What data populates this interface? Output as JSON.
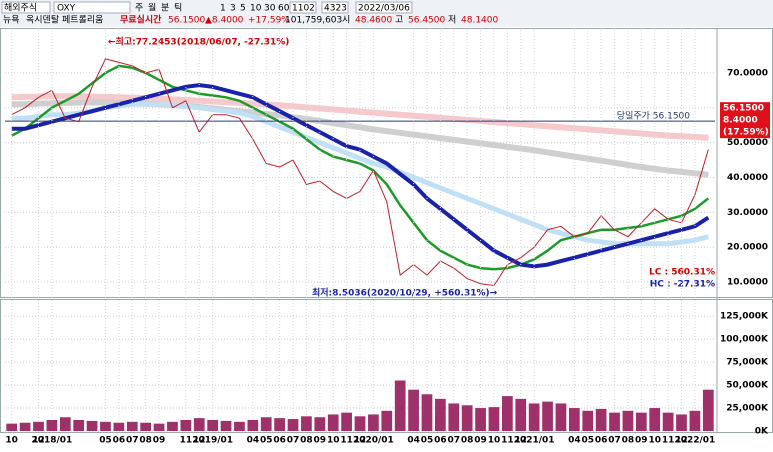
{
  "toolbar": {
    "market": "해외주식",
    "symbol": "OXY",
    "exchange": "뉴욕",
    "name": "옥시덴탈 페트롤리움",
    "realtime": "무료실시간",
    "units": [
      "주",
      "월",
      "분",
      "틱"
    ],
    "periods": [
      "1",
      "3",
      "5",
      "10",
      "30",
      "60"
    ],
    "count1": "1102",
    "count2": "4323",
    "date": "2022/03/06",
    "price": "56.1500",
    "change": "▲8.4000",
    "change_pct": "+17.59%",
    "volume": "101,759,603",
    "open_label": "시",
    "open": "48.4600",
    "high_label": "고",
    "high": "56.4500",
    "low_label": "저",
    "low": "48.1400"
  },
  "chart_data": [
    {
      "type": "line",
      "ylim": [
        6,
        82.3
      ],
      "yticks": [
        {
          "value": 70,
          "label": "70.0000"
        },
        {
          "value": 60,
          "label": "60.0000"
        },
        {
          "value": 50,
          "label": "50.0000"
        },
        {
          "value": 40,
          "label": "40.0000"
        },
        {
          "value": 30,
          "label": "30.0000"
        },
        {
          "value": 20,
          "label": "20.0000"
        },
        {
          "value": 10,
          "label": "10.0000"
        }
      ],
      "series": [
        {
          "color": "#f6c9cc",
          "width": 6,
          "values": [
            63,
            63.1,
            63.2,
            63.3,
            63.3,
            63.3,
            63.2,
            63.1,
            63,
            62.9,
            62.8,
            62.6,
            62.4,
            62.2,
            62,
            61.8,
            61.6,
            61.4,
            61.2,
            61,
            60.7,
            60.4,
            60.1,
            59.8,
            59.5,
            59.2,
            58.9,
            58.6,
            58.3,
            58,
            57.7,
            57.4,
            57.1,
            56.8,
            56.5,
            56.2,
            55.9,
            55.6,
            55.3,
            55,
            54.7,
            54.4,
            54.1,
            53.8,
            53.5,
            53.2,
            52.9,
            52.6,
            52.3,
            52,
            51.8,
            51.6,
            51.4
          ]
        },
        {
          "color": "#cfcfcf",
          "width": 6,
          "values": [
            61,
            61,
            61.2,
            61.3,
            61.4,
            61.5,
            61.5,
            61.5,
            61.4,
            61.3,
            61.2,
            61,
            60.8,
            60.5,
            60.2,
            59.8,
            59.4,
            59,
            58.6,
            58.2,
            57.8,
            57.3,
            56.8,
            56.2,
            55.6,
            55,
            54.4,
            53.8,
            53.3,
            52.8,
            52.3,
            51.8,
            51.3,
            50.8,
            50.3,
            49.8,
            49.3,
            48.8,
            48.3,
            47.8,
            47.2,
            46.6,
            46,
            45.4,
            44.8,
            44.2,
            43.6,
            43,
            42.5,
            42,
            41.6,
            41.2,
            40.8
          ]
        },
        {
          "color": "#bfe0f5",
          "width": 5,
          "values": [
            57,
            57,
            57.5,
            58,
            58,
            58.5,
            59,
            60,
            60.5,
            61,
            61,
            61,
            61,
            60.5,
            60,
            59.5,
            59,
            58.5,
            57.5,
            56,
            54.5,
            53,
            51.5,
            50,
            48.5,
            47,
            45.5,
            44,
            43,
            41.5,
            40,
            38.5,
            37,
            35.5,
            34,
            32.5,
            31,
            29.5,
            28,
            26.5,
            25,
            24,
            23,
            22,
            21.5,
            21,
            21,
            21,
            21,
            21,
            21.5,
            22,
            23
          ]
        },
        {
          "color": "#1f9a2a",
          "width": 2.5,
          "values": [
            52,
            54,
            57,
            60,
            62,
            64,
            67,
            70,
            72,
            71.5,
            70,
            68,
            66,
            65,
            64,
            63.5,
            63,
            62,
            60,
            58,
            56,
            54,
            51,
            48,
            46,
            45,
            44,
            42,
            38,
            32,
            27,
            22,
            19,
            17,
            15,
            14,
            13.7,
            14,
            15,
            16.5,
            19,
            22,
            23,
            24,
            25,
            25,
            25.5,
            26,
            27,
            28,
            29,
            31,
            34
          ]
        },
        {
          "color": "#1a23a8",
          "width": 4,
          "values": [
            54,
            54,
            55,
            56,
            57,
            58,
            59,
            60,
            61,
            62,
            63,
            64,
            65,
            66,
            66.5,
            66,
            65,
            64,
            63,
            61,
            59,
            57,
            55,
            53,
            51,
            49,
            48,
            46,
            44,
            41,
            38,
            34,
            31,
            28,
            25,
            22,
            19,
            17,
            15,
            14.5,
            15,
            16,
            17,
            18,
            19,
            20,
            21,
            22,
            23,
            24,
            25,
            26,
            28.5
          ]
        },
        {
          "color": "#c0202a",
          "width": 1,
          "values": [
            58,
            60,
            63,
            65,
            57,
            56,
            66,
            74,
            73,
            72,
            70,
            71,
            60,
            62,
            53,
            58,
            58,
            57,
            51,
            44,
            43,
            45,
            38,
            39,
            36,
            34,
            36,
            42,
            33,
            12,
            15,
            12,
            16,
            14,
            11,
            9.5,
            9,
            15,
            17,
            20,
            25,
            26,
            23,
            24,
            29,
            25,
            23,
            27,
            31,
            28,
            27,
            35,
            48
          ]
        }
      ],
      "current_price": 56.15,
      "current_price_label": "당일주가 56.1500",
      "price_tag": [
        "56.1500",
        "8.4000",
        "(17.59%)"
      ],
      "high_note": "←최고:77.2453(2018/06/07, -27.31%)",
      "low_note": "최저:8.5036(2020/10/29, +560.31%)→",
      "lc": "LC : 560.31%",
      "hc": "HC : -27.31%"
    },
    {
      "type": "bar",
      "categories": [
        "10",
        null,
        "12",
        "2018/01",
        null,
        null,
        null,
        "05",
        "06",
        "07",
        "08",
        "09",
        null,
        "11",
        "12",
        "2019/01",
        null,
        null,
        "04",
        "05",
        "06",
        "07",
        "08",
        "09",
        "10",
        "11",
        "12",
        "2020/01",
        null,
        null,
        "04",
        "05",
        "06",
        "07",
        "08",
        "09",
        "10",
        "11",
        "12",
        "2021/01",
        null,
        null,
        "04",
        "05",
        "06",
        "07",
        "08",
        "09",
        "10",
        "11",
        "12",
        "2022/01",
        null
      ],
      "color": "#a0306a",
      "ylim": [
        0,
        141600
      ],
      "yticks": [
        {
          "value": 125000,
          "label": "125,000K"
        },
        {
          "value": 100000,
          "label": "100,000K"
        },
        {
          "value": 75000,
          "label": "75,000K"
        },
        {
          "value": 50000,
          "label": "50,000K"
        },
        {
          "value": 25000,
          "label": "25,000K"
        },
        {
          "value": 0,
          "label": "0K"
        }
      ],
      "values": [
        8000,
        9000,
        10000,
        12000,
        15000,
        12000,
        11000,
        10000,
        9000,
        10000,
        9000,
        8000,
        10000,
        12000,
        14000,
        12000,
        11000,
        10000,
        12000,
        15000,
        14000,
        13000,
        16000,
        15000,
        18000,
        20000,
        16000,
        18000,
        22000,
        55000,
        45000,
        40000,
        35000,
        30000,
        28000,
        25000,
        26000,
        38000,
        35000,
        30000,
        32000,
        30000,
        25000,
        22000,
        24000,
        20000,
        22000,
        20000,
        25000,
        20000,
        18000,
        22000,
        45000
      ]
    }
  ]
}
